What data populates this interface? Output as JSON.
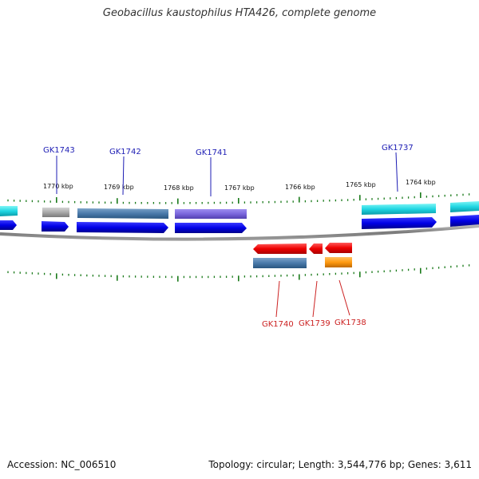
{
  "title": "Geobacillus kaustophilus HTA426, complete genome",
  "footer": {
    "accession": "Accession: NC_006510",
    "summary": "Topology: circular; Length: 3,544,776 bp; Genes: 3,611"
  },
  "colors": {
    "backbone": "#888888",
    "tick": "#1a7a1a",
    "forward_label": "#1c1cb4",
    "reverse_label": "#cc2222"
  },
  "kbp_labels": [
    {
      "text": "1770 kbp",
      "kbp": 1770
    },
    {
      "text": "1769 kbp",
      "kbp": 1769
    },
    {
      "text": "1768 kbp",
      "kbp": 1768
    },
    {
      "text": "1767 kbp",
      "kbp": 1767
    },
    {
      "text": "1766 kbp",
      "kbp": 1766
    },
    {
      "text": "1765 kbp",
      "kbp": 1765
    },
    {
      "text": "1764 kbp",
      "kbp": 1764
    }
  ],
  "gene_labels": [
    {
      "name": "GK1743",
      "strand": "forward"
    },
    {
      "name": "GK1742",
      "strand": "forward"
    },
    {
      "name": "GK1741",
      "strand": "forward"
    },
    {
      "name": "GK1737",
      "strand": "forward"
    },
    {
      "name": "GK1740",
      "strand": "reverse"
    },
    {
      "name": "GK1739",
      "strand": "reverse"
    },
    {
      "name": "GK1738",
      "strand": "reverse"
    }
  ]
}
